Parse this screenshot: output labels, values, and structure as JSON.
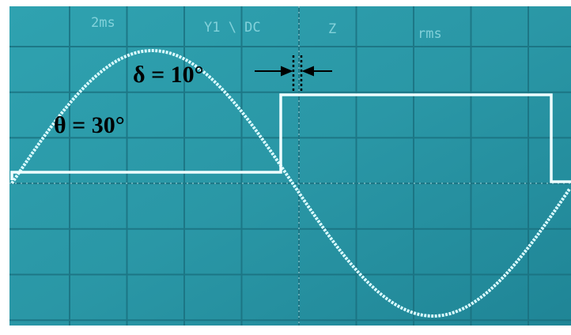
{
  "scope_header": {
    "timebase": "2ms",
    "channel": "Y1 \\ DC",
    "mode": "Z",
    "measure": "rms"
  },
  "annotations": {
    "delta": "δ = 10°",
    "theta": "θ = 30°"
  }
}
